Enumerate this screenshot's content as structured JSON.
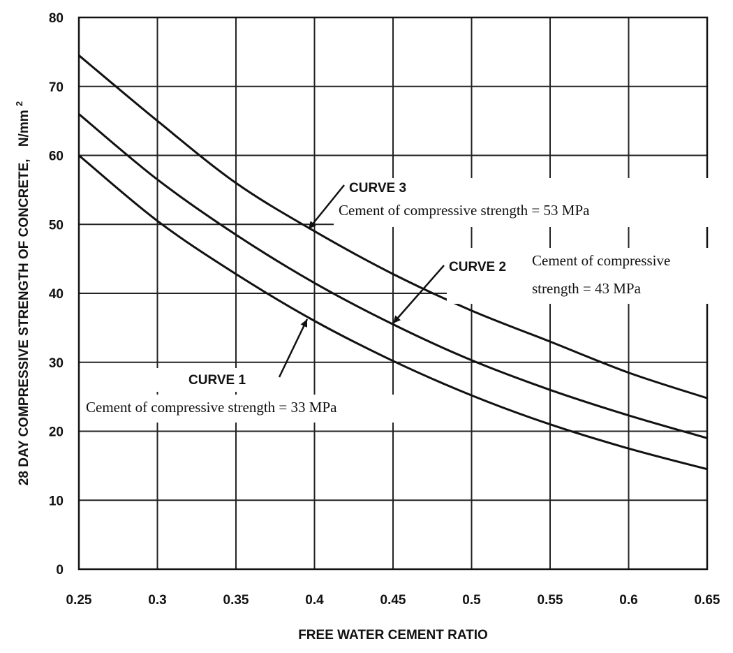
{
  "chart_data": {
    "type": "line",
    "xlabel": "FREE WATER CEMENT RATIO",
    "ylabel": "28 DAY COMPRESSIVE STRENGTH OF CONCRETE,",
    "ylabel_unit": "N/mm",
    "ylabel_unit_sup": "2",
    "xlim": [
      0.25,
      0.65
    ],
    "ylim": [
      0,
      80
    ],
    "x_ticks": [
      "0.25",
      "0.3",
      "0.35",
      "0.4",
      "0.45",
      "0.5",
      "0.55",
      "0.6",
      "0.65"
    ],
    "y_ticks": [
      "0",
      "10",
      "20",
      "30",
      "40",
      "50",
      "60",
      "70",
      "80"
    ],
    "grid": true,
    "series": [
      {
        "name": "CURVE 1",
        "annotation": "Cement of compressive strength = 33 MPa",
        "x": [
          0.25,
          0.3,
          0.35,
          0.4,
          0.45,
          0.5,
          0.55,
          0.6,
          0.65
        ],
        "y": [
          60,
          50.5,
          42.8,
          36,
          30.2,
          25.2,
          21,
          17.5,
          14.5
        ]
      },
      {
        "name": "CURVE 2",
        "annotation": "Cement of compressive strength = 43 MPa",
        "x": [
          0.25,
          0.3,
          0.35,
          0.4,
          0.45,
          0.5,
          0.55,
          0.6,
          0.65
        ],
        "y": [
          66,
          56.5,
          48.5,
          41.5,
          35.5,
          30.3,
          26,
          22.3,
          19
        ]
      },
      {
        "name": "CURVE 3",
        "annotation": "Cement of compressive strength = 53 MPa",
        "x": [
          0.25,
          0.3,
          0.35,
          0.4,
          0.45,
          0.5,
          0.55,
          0.6,
          0.65
        ],
        "y": [
          74.5,
          65,
          56,
          49,
          42.8,
          37.5,
          33,
          28.5,
          24.8
        ]
      }
    ]
  }
}
